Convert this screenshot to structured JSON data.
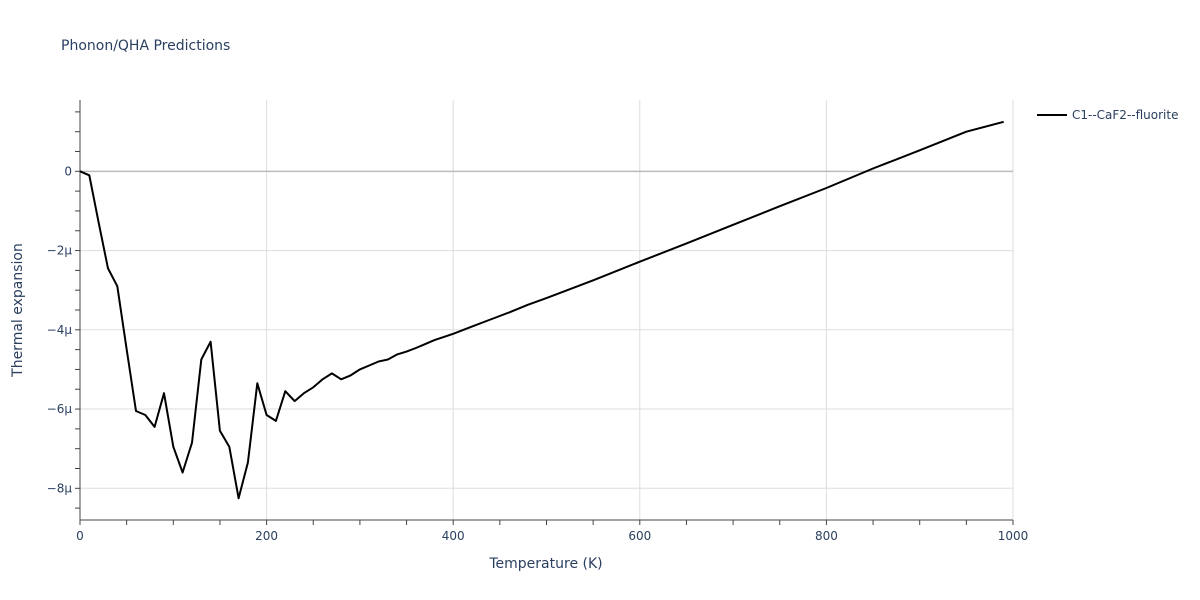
{
  "chart_data": {
    "type": "line",
    "title": "Phonon/QHA Predictions",
    "xlabel": "Temperature (K)",
    "ylabel": "Thermal expansion",
    "xlim": [
      0,
      1000
    ],
    "ylim": [
      -8.8,
      1.8
    ],
    "y_unit_scale": "1e-6",
    "x_ticks": [
      0,
      200,
      400,
      600,
      800,
      1000
    ],
    "x_tick_labels": [
      "0",
      "200",
      "400",
      "600",
      "800",
      "1000"
    ],
    "y_ticks": [
      0,
      -2,
      -4,
      -6,
      -8
    ],
    "y_tick_labels": [
      "0",
      "−2µ",
      "−4µ",
      "−6µ",
      "−8µ"
    ],
    "grid": true,
    "legend_position": "top-right",
    "colors": {
      "series": "#000000",
      "grid": "#dddddd",
      "zeroline": "#bbbbbb",
      "text": "#2a3f5f"
    },
    "series": [
      {
        "name": "C1--CaF2--fluorite",
        "x": [
          0,
          10,
          20,
          30,
          40,
          50,
          60,
          70,
          80,
          90,
          100,
          110,
          120,
          130,
          140,
          150,
          160,
          170,
          180,
          190,
          200,
          210,
          220,
          230,
          240,
          250,
          260,
          270,
          280,
          290,
          300,
          310,
          320,
          330,
          340,
          350,
          360,
          370,
          380,
          390,
          400,
          420,
          440,
          460,
          480,
          500,
          550,
          600,
          650,
          700,
          750,
          800,
          850,
          900,
          950,
          990
        ],
        "y": [
          0,
          -0.1,
          -1.3,
          -2.45,
          -2.9,
          -4.5,
          -6.05,
          -6.15,
          -6.45,
          -5.6,
          -6.95,
          -7.6,
          -6.85,
          -4.75,
          -4.3,
          -6.55,
          -6.95,
          -8.25,
          -7.35,
          -5.35,
          -6.15,
          -6.3,
          -5.55,
          -5.8,
          -5.6,
          -5.45,
          -5.25,
          -5.1,
          -5.25,
          -5.15,
          -5.0,
          -4.9,
          -4.8,
          -4.75,
          -4.62,
          -4.55,
          -4.46,
          -4.36,
          -4.26,
          -4.18,
          -4.1,
          -3.92,
          -3.74,
          -3.56,
          -3.37,
          -3.2,
          -2.75,
          -2.28,
          -1.82,
          -1.35,
          -0.88,
          -0.42,
          0.07,
          0.53,
          1.0,
          1.25
        ]
      }
    ]
  }
}
